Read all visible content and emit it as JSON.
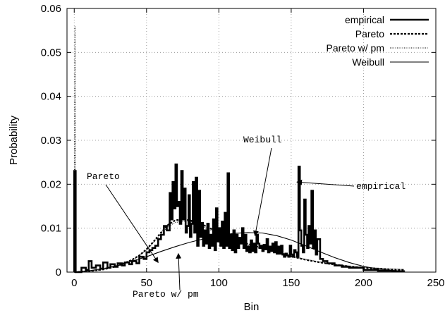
{
  "chart_data": {
    "type": "line",
    "xlabel": "Bin",
    "ylabel": "Probability",
    "xlim": [
      -5,
      250
    ],
    "ylim": [
      0,
      0.06
    ],
    "xticks": [
      "0",
      "50",
      "100",
      "150",
      "200",
      "250"
    ],
    "yticks": [
      "0",
      "0.01",
      "0.02",
      "0.03",
      "0.04",
      "0.05",
      "0.06"
    ],
    "grid": true,
    "legend_position": "top-right",
    "series": [
      {
        "name": "empirical",
        "style": "solid-thick",
        "x": [
          0,
          1,
          2,
          5,
          8,
          10,
          12,
          15,
          18,
          20,
          23,
          25,
          28,
          30,
          33,
          35,
          38,
          40,
          43,
          45,
          48,
          50,
          52,
          54,
          56,
          58,
          60,
          62,
          64,
          66,
          67,
          68,
          69,
          70,
          71,
          72,
          73,
          74,
          75,
          76,
          77,
          78,
          79,
          80,
          81,
          82,
          83,
          84,
          85,
          86,
          87,
          88,
          89,
          90,
          91,
          92,
          93,
          94,
          95,
          96,
          97,
          98,
          99,
          100,
          101,
          102,
          103,
          104,
          105,
          106,
          107,
          108,
          109,
          110,
          111,
          112,
          113,
          114,
          115,
          116,
          117,
          118,
          119,
          120,
          121,
          122,
          123,
          124,
          125,
          126,
          127,
          128,
          129,
          130,
          131,
          132,
          133,
          134,
          135,
          136,
          137,
          138,
          139,
          140,
          141,
          142,
          143,
          144,
          145,
          146,
          147,
          148,
          149,
          150,
          151,
          152,
          153,
          154,
          155,
          156,
          157,
          158,
          159,
          160,
          161,
          162,
          163,
          164,
          165,
          166,
          167,
          168,
          170,
          172,
          175,
          180,
          185,
          190,
          200,
          210,
          220,
          228
        ],
        "values": [
          0.023,
          0.0,
          0.0,
          0.001,
          0.0005,
          0.0025,
          0.001,
          0.0015,
          0.0008,
          0.0022,
          0.001,
          0.0018,
          0.0012,
          0.002,
          0.0015,
          0.0022,
          0.0018,
          0.0025,
          0.002,
          0.0035,
          0.003,
          0.0045,
          0.005,
          0.0055,
          0.006,
          0.0075,
          0.0085,
          0.0105,
          0.0095,
          0.018,
          0.012,
          0.0205,
          0.0145,
          0.0245,
          0.015,
          0.016,
          0.011,
          0.023,
          0.012,
          0.019,
          0.009,
          0.0105,
          0.0175,
          0.008,
          0.011,
          0.0205,
          0.009,
          0.0215,
          0.006,
          0.0185,
          0.008,
          0.0112,
          0.006,
          0.0095,
          0.0065,
          0.011,
          0.0055,
          0.0085,
          0.006,
          0.012,
          0.005,
          0.0145,
          0.007,
          0.01,
          0.006,
          0.0115,
          0.0055,
          0.0135,
          0.006,
          0.0225,
          0.0055,
          0.0085,
          0.005,
          0.0095,
          0.0045,
          0.0085,
          0.0055,
          0.0078,
          0.0065,
          0.01,
          0.0055,
          0.0085,
          0.0048,
          0.0058,
          0.0045,
          0.0072,
          0.0048,
          0.0065,
          0.0045,
          0.0085,
          0.0065,
          0.0055,
          0.006,
          0.0048,
          0.0062,
          0.0052,
          0.0075,
          0.0045,
          0.0058,
          0.0048,
          0.0065,
          0.0045,
          0.0068,
          0.0042,
          0.0058,
          0.0042,
          0.006,
          0.004,
          0.0035,
          0.0042,
          0.0038,
          0.0035,
          0.006,
          0.004,
          0.0035,
          0.005,
          0.0045,
          0.0035,
          0.024,
          0.0095,
          0.006,
          0.0045,
          0.0165,
          0.0085,
          0.0055,
          0.0105,
          0.0065,
          0.0185,
          0.0055,
          0.0095,
          0.004,
          0.0075,
          0.003,
          0.0025,
          0.002,
          0.0015,
          0.0012,
          0.001,
          0.0005,
          0.0003,
          0.0002,
          0.0001
        ]
      },
      {
        "name": "Pareto",
        "style": "dashed",
        "x": [
          0,
          10,
          20,
          30,
          40,
          45,
          50,
          55,
          60,
          65,
          70,
          75,
          80,
          85,
          90,
          95,
          100,
          110,
          120,
          130,
          140,
          150,
          160,
          170,
          180,
          190,
          200,
          210,
          220,
          228
        ],
        "values": [
          0.0,
          0.0002,
          0.0006,
          0.0014,
          0.0028,
          0.0038,
          0.0052,
          0.007,
          0.009,
          0.0108,
          0.0118,
          0.012,
          0.0118,
          0.0112,
          0.0106,
          0.0098,
          0.009,
          0.0076,
          0.0064,
          0.0055,
          0.0046,
          0.0036,
          0.0028,
          0.0022,
          0.0017,
          0.0013,
          0.001,
          0.0008,
          0.0006,
          0.0005
        ]
      },
      {
        "name": "Pareto w/ pm",
        "style": "dotted",
        "x": [
          0,
          0.5,
          1,
          10,
          20,
          30,
          40,
          45,
          50,
          55,
          60,
          65,
          70,
          75,
          80,
          85,
          90,
          95,
          100,
          110,
          120,
          130,
          140,
          150,
          160,
          170,
          180,
          190,
          200,
          210,
          220,
          228
        ],
        "values": [
          0.0,
          0.056,
          0.0,
          0.0002,
          0.0006,
          0.0014,
          0.0027,
          0.0037,
          0.005,
          0.0068,
          0.0087,
          0.0104,
          0.0113,
          0.0116,
          0.0115,
          0.0109,
          0.0102,
          0.0095,
          0.0087,
          0.0074,
          0.0062,
          0.0053,
          0.0045,
          0.0036,
          0.0029,
          0.0023,
          0.0018,
          0.0014,
          0.0011,
          0.0009,
          0.0007,
          0.0006
        ]
      },
      {
        "name": "Weibull",
        "style": "solid-thin",
        "x": [
          0,
          10,
          20,
          30,
          40,
          50,
          60,
          70,
          80,
          90,
          100,
          110,
          120,
          130,
          140,
          150,
          160,
          170,
          180,
          190,
          200,
          210,
          220,
          228
        ],
        "values": [
          0.0,
          0.0003,
          0.0008,
          0.0015,
          0.0025,
          0.0035,
          0.0047,
          0.0058,
          0.0068,
          0.0076,
          0.0083,
          0.0088,
          0.009,
          0.0089,
          0.0083,
          0.0073,
          0.006,
          0.0046,
          0.0033,
          0.0022,
          0.0013,
          0.0007,
          0.0004,
          0.0002
        ]
      }
    ],
    "annotations": [
      {
        "text": "Pareto",
        "x": 58,
        "y": 0.0022
      },
      {
        "text": "Weibull",
        "x": 125,
        "y": 0.0083
      },
      {
        "text": "empirical",
        "x": 154,
        "y": 0.0205
      },
      {
        "text": "Pareto w/ pm",
        "x": 72,
        "y": 0.0042
      }
    ]
  }
}
